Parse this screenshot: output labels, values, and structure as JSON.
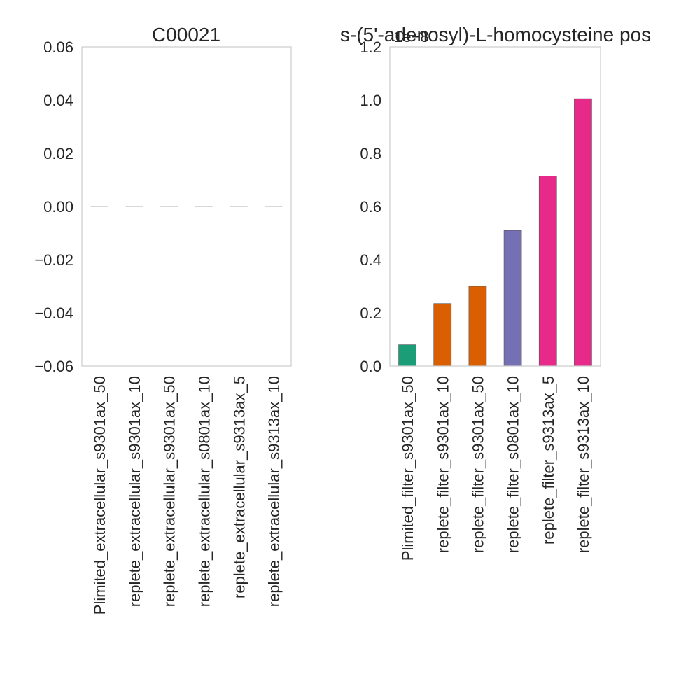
{
  "chart_data": [
    {
      "type": "bar",
      "title": "C00021",
      "xlabel": "",
      "ylabel": "",
      "categories": [
        "Plimited_extracellular_s9301ax_50",
        "replete_extracellular_s9301ax_10",
        "replete_extracellular_s9301ax_50",
        "replete_extracellular_s0801ax_10",
        "replete_extracellular_s9313ax_5",
        "replete_extracellular_s9313ax_10"
      ],
      "values": [
        0,
        0,
        0,
        0,
        0,
        0
      ],
      "colors": [
        "#cccccc",
        "#cccccc",
        "#cccccc",
        "#cccccc",
        "#cccccc",
        "#cccccc"
      ],
      "ylim": [
        -0.06,
        0.06
      ],
      "yticks": [
        -0.06,
        -0.04,
        -0.02,
        0.0,
        0.02,
        0.04,
        0.06
      ],
      "ytick_labels": [
        "−0.06",
        "−0.04",
        "−0.02",
        "0.00",
        "0.02",
        "0.04",
        "0.06"
      ],
      "offset_label": "",
      "grid": false
    },
    {
      "type": "bar",
      "title": "s-(5'-adenosyl)-L-homocysteine pos",
      "xlabel": "",
      "ylabel": "",
      "categories": [
        "Plimited_filter_s9301ax_50",
        "replete_filter_s9301ax_10",
        "replete_filter_s9301ax_50",
        "replete_filter_s0801ax_10",
        "replete_filter_s9313ax_5",
        "replete_filter_s9313ax_10"
      ],
      "values": [
        8e-10,
        2.35e-09,
        3e-09,
        5.1e-09,
        7.15e-09,
        1.005e-08
      ],
      "colors": [
        "#1b9e77",
        "#d95f02",
        "#d95f02",
        "#7570b3",
        "#e7298a",
        "#e7298a"
      ],
      "ylim": [
        0,
        1.2e-08
      ],
      "yticks": [
        0,
        2e-09,
        4e-09,
        6e-09,
        8e-09,
        1e-08,
        1.2e-08
      ],
      "ytick_labels": [
        "0.0",
        "0.2",
        "0.4",
        "0.6",
        "0.8",
        "1.0",
        "1.2"
      ],
      "offset_label": "1e−8",
      "grid": false
    }
  ]
}
